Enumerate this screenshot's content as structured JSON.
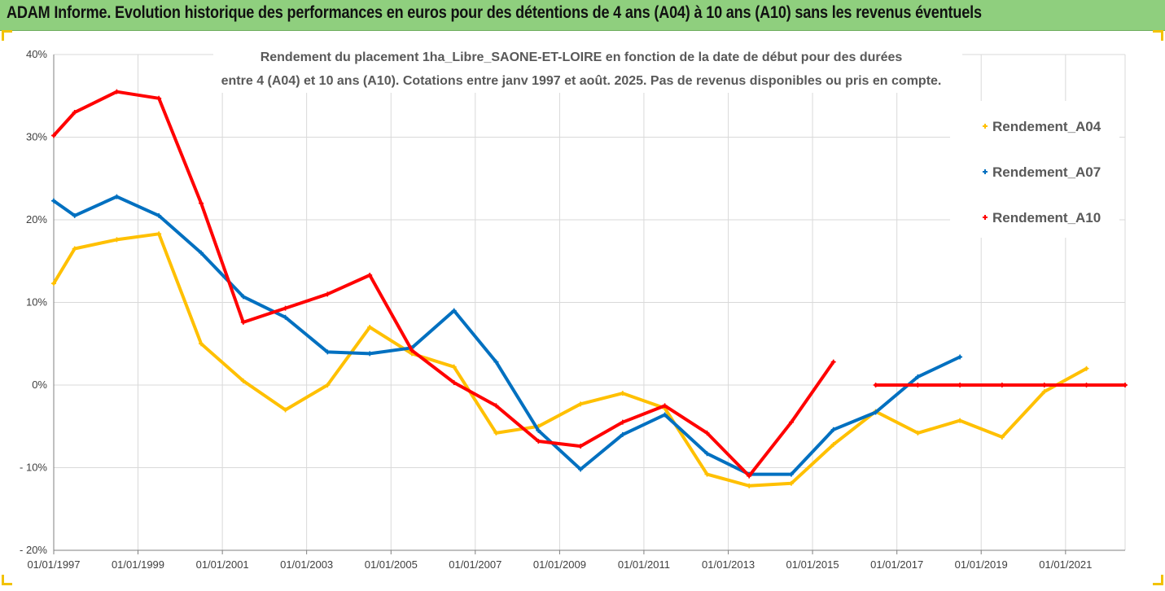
{
  "header": {
    "title": "ADAM Informe. Evolution historique des performances en euros pour des détentions de 4 ans (A04) à 10 ans (A10) sans les revenus éventuels"
  },
  "chart_data": {
    "type": "line",
    "title_line1": "Rendement du placement 1ha_Libre_SAONE-ET-LOIRE en fonction de la date de début pour des durées",
    "title_line2": "entre 4 (A04) et 10 ans (A10). Cotations entre janv 1997 et août. 2025. Pas de revenus disponibles ou pris en compte.",
    "xlabel": "",
    "ylabel": "",
    "x_range": [
      "1997-01-01",
      "2022-06-01"
    ],
    "ylim": [
      -20,
      40
    ],
    "y_ticks": [
      {
        "value": 40,
        "label": "40%"
      },
      {
        "value": 30,
        "label": "30%"
      },
      {
        "value": 20,
        "label": "20%"
      },
      {
        "value": 10,
        "label": "10%"
      },
      {
        "value": 0,
        "label": "0%"
      },
      {
        "value": -10,
        "label": "- 10%"
      },
      {
        "value": -20,
        "label": "- 20%"
      }
    ],
    "x_ticks": [
      {
        "date": "1997-01-01",
        "label": "01/01/1997"
      },
      {
        "date": "1999-01-01",
        "label": "01/01/1999"
      },
      {
        "date": "2001-01-01",
        "label": "01/01/2001"
      },
      {
        "date": "2003-01-01",
        "label": "01/01/2003"
      },
      {
        "date": "2005-01-01",
        "label": "01/01/2005"
      },
      {
        "date": "2007-01-01",
        "label": "01/01/2007"
      },
      {
        "date": "2009-01-01",
        "label": "01/01/2009"
      },
      {
        "date": "2011-01-01",
        "label": "01/01/2011"
      },
      {
        "date": "2013-01-01",
        "label": "01/01/2013"
      },
      {
        "date": "2015-01-01",
        "label": "01/01/2015"
      },
      {
        "date": "2017-01-01",
        "label": "01/01/2017"
      },
      {
        "date": "2019-01-01",
        "label": "01/01/2019"
      },
      {
        "date": "2021-01-01",
        "label": "01/01/2021"
      }
    ],
    "grid": true,
    "legend_position": "right",
    "series": [
      {
        "name": "Rendement_A04",
        "color": "#ffc000",
        "points": [
          [
            "1997-01-01",
            12.3
          ],
          [
            "1997-07-01",
            16.5
          ],
          [
            "1998-07-01",
            17.6
          ],
          [
            "1999-07-01",
            18.3
          ],
          [
            "2000-07-01",
            5.0
          ],
          [
            "2001-07-01",
            0.5
          ],
          [
            "2002-07-01",
            -3.0
          ],
          [
            "2003-07-01",
            0.0
          ],
          [
            "2004-07-01",
            7.0
          ],
          [
            "2005-07-01",
            3.8
          ],
          [
            "2006-07-01",
            2.2
          ],
          [
            "2007-07-01",
            -5.8
          ],
          [
            "2008-07-01",
            -5.0
          ],
          [
            "2009-07-01",
            -2.3
          ],
          [
            "2010-07-01",
            -1.0
          ],
          [
            "2011-07-01",
            -2.8
          ],
          [
            "2012-07-01",
            -10.8
          ],
          [
            "2013-07-01",
            -12.2
          ],
          [
            "2014-07-01",
            -11.9
          ],
          [
            "2015-07-01",
            -7.2
          ],
          [
            "2016-07-01",
            -3.2
          ],
          [
            "2017-07-01",
            -5.8
          ],
          [
            "2018-07-01",
            -4.3
          ],
          [
            "2019-07-01",
            -6.3
          ],
          [
            "2020-07-01",
            -0.8
          ],
          [
            "2021-07-01",
            2.0
          ]
        ]
      },
      {
        "name": "Rendement_A07",
        "color": "#0070c0",
        "points": [
          [
            "1997-01-01",
            22.3
          ],
          [
            "1997-07-01",
            20.5
          ],
          [
            "1998-07-01",
            22.8
          ],
          [
            "1999-07-01",
            20.5
          ],
          [
            "2000-07-01",
            16.0
          ],
          [
            "2001-07-01",
            10.7
          ],
          [
            "2002-07-01",
            8.2
          ],
          [
            "2003-07-01",
            4.0
          ],
          [
            "2004-07-01",
            3.8
          ],
          [
            "2005-07-01",
            4.5
          ],
          [
            "2006-07-01",
            9.0
          ],
          [
            "2007-07-01",
            2.8
          ],
          [
            "2008-07-01",
            -5.5
          ],
          [
            "2009-07-01",
            -10.2
          ],
          [
            "2010-07-01",
            -6.0
          ],
          [
            "2011-07-01",
            -3.6
          ],
          [
            "2012-07-01",
            -8.3
          ],
          [
            "2013-07-01",
            -10.8
          ],
          [
            "2014-07-01",
            -10.8
          ],
          [
            "2015-07-01",
            -5.4
          ],
          [
            "2016-07-01",
            -3.3
          ],
          [
            "2017-07-01",
            1.0
          ],
          [
            "2018-07-01",
            3.4
          ]
        ]
      },
      {
        "name": "Rendement_A10",
        "color": "#ff0000",
        "segments": [
          [
            [
              "1997-01-01",
              30.2
            ],
            [
              "1997-07-01",
              33.0
            ],
            [
              "1998-07-01",
              35.5
            ],
            [
              "1999-07-01",
              34.7
            ],
            [
              "2000-07-01",
              22.0
            ],
            [
              "2001-07-01",
              7.6
            ],
            [
              "2002-07-01",
              9.3
            ],
            [
              "2003-07-01",
              11.0
            ],
            [
              "2004-07-01",
              13.3
            ],
            [
              "2005-07-01",
              4.2
            ],
            [
              "2006-07-01",
              0.3
            ],
            [
              "2007-07-01",
              -2.5
            ],
            [
              "2008-07-01",
              -6.8
            ],
            [
              "2009-07-01",
              -7.4
            ],
            [
              "2010-07-01",
              -4.5
            ],
            [
              "2011-07-01",
              -2.5
            ],
            [
              "2012-07-01",
              -5.8
            ],
            [
              "2013-07-01",
              -11.0
            ],
            [
              "2014-07-01",
              -4.5
            ],
            [
              "2015-07-01",
              2.8
            ]
          ],
          [
            [
              "2016-07-01",
              0.0
            ],
            [
              "2017-07-01",
              0.0
            ],
            [
              "2018-07-01",
              0.0
            ],
            [
              "2019-07-01",
              0.0
            ],
            [
              "2020-07-01",
              0.0
            ],
            [
              "2021-07-01",
              0.0
            ],
            [
              "2022-06-01",
              0.0
            ]
          ]
        ]
      }
    ]
  }
}
